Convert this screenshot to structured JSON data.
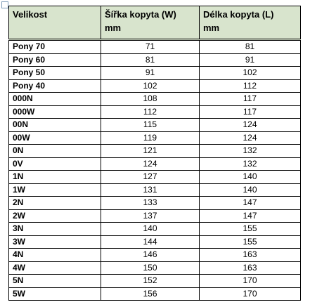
{
  "table": {
    "header": [
      "Velikost",
      "Šířka kopyta (W) mm",
      "Délka kopyta (L) mm"
    ],
    "rows": [
      [
        "Pony 70",
        71,
        81
      ],
      [
        "Pony 60",
        81,
        91
      ],
      [
        "Pony 50",
        91,
        102
      ],
      [
        "Pony 40",
        102,
        112
      ],
      [
        "000N",
        108,
        117
      ],
      [
        "000W",
        112,
        117
      ],
      [
        "00N",
        115,
        124
      ],
      [
        "00W",
        119,
        124
      ],
      [
        "0N",
        121,
        132
      ],
      [
        "0V",
        124,
        132
      ],
      [
        "1N",
        127,
        140
      ],
      [
        "1W",
        131,
        140
      ],
      [
        "2N",
        133,
        147
      ],
      [
        "2W",
        137,
        147
      ],
      [
        "3N",
        140,
        155
      ],
      [
        "3W",
        144,
        155
      ],
      [
        "4N",
        146,
        163
      ],
      [
        "4W",
        150,
        163
      ],
      [
        "5N",
        152,
        170
      ],
      [
        "5W",
        156,
        170
      ]
    ]
  }
}
